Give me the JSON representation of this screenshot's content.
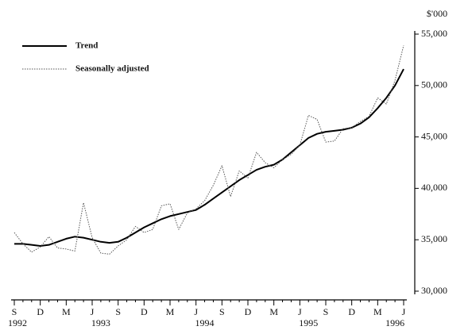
{
  "chart_data": {
    "type": "line",
    "y_axis_label": "$'000",
    "categories": [
      "S",
      null,
      null,
      "D",
      null,
      null,
      "M",
      null,
      null,
      "J",
      null,
      null,
      "S",
      null,
      null,
      "D",
      null,
      null,
      "M",
      null,
      null,
      "J",
      null,
      null,
      "S",
      null,
      null,
      "D",
      null,
      null,
      "M",
      null,
      null,
      "J",
      null,
      null,
      "S",
      null,
      null,
      "D",
      null,
      null,
      "M",
      null,
      null,
      "J"
    ],
    "year_labels": [
      "1992",
      null,
      null,
      null,
      null,
      null,
      null,
      null,
      null,
      null,
      "1993",
      null,
      null,
      null,
      null,
      null,
      null,
      null,
      null,
      null,
      null,
      null,
      "1994",
      null,
      null,
      null,
      null,
      null,
      null,
      null,
      null,
      null,
      null,
      null,
      "1995",
      null,
      null,
      null,
      null,
      null,
      null,
      null,
      null,
      null,
      "1996",
      null
    ],
    "series": [
      {
        "name": "Trend",
        "color": "#000000",
        "style": "solid",
        "values": [
          34600,
          34600,
          34500,
          34400,
          34500,
          34800,
          35100,
          35300,
          35200,
          35000,
          34800,
          34700,
          34800,
          35200,
          35700,
          36200,
          36600,
          37000,
          37300,
          37500,
          37700,
          37900,
          38400,
          39000,
          39600,
          40200,
          40800,
          41300,
          41800,
          42100,
          42300,
          42800,
          43500,
          44200,
          44900,
          45300,
          45500,
          45600,
          45700,
          45900,
          46300,
          46900,
          47800,
          48800,
          50000,
          51600
        ]
      },
      {
        "name": "Seasonally adjusted",
        "color": "#555555",
        "style": "dotted",
        "values": [
          35700,
          34600,
          33800,
          34300,
          35300,
          34200,
          34100,
          33900,
          38600,
          35200,
          33700,
          33600,
          34400,
          35000,
          36300,
          35700,
          36000,
          38300,
          38500,
          36000,
          37600,
          38000,
          38800,
          40300,
          42200,
          39200,
          41700,
          41000,
          43500,
          42500,
          42000,
          42800,
          43300,
          44200,
          47100,
          46700,
          44500,
          44600,
          45800,
          45900,
          46500,
          47000,
          48800,
          48200,
          50500,
          53900
        ]
      }
    ],
    "ylim": [
      30000,
      55000
    ],
    "yticks": [
      {
        "value": 30000,
        "label": "30,000"
      },
      {
        "value": 35000,
        "label": "35,000"
      },
      {
        "value": 40000,
        "label": "40,000"
      },
      {
        "value": 45000,
        "label": "45,000"
      },
      {
        "value": 50000,
        "label": "50,000"
      },
      {
        "value": 55000,
        "label": "55,000"
      }
    ],
    "legend_position": "top-left"
  }
}
